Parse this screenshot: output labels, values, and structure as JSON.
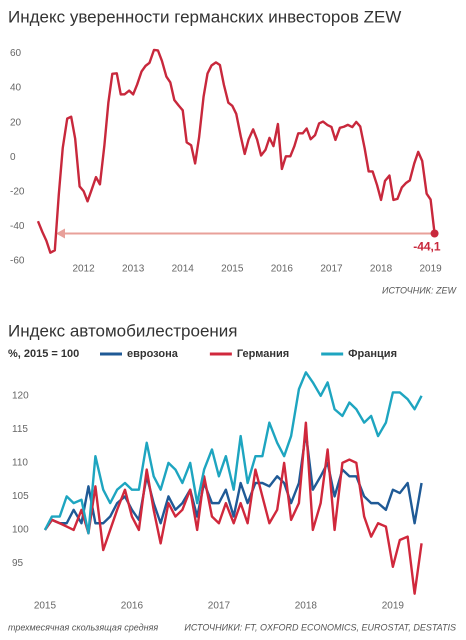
{
  "chart_data": [
    {
      "type": "line",
      "title": "Индекс уверенности германских инвесторов ZEW",
      "source": "ИСТОЧНИК: ZEW",
      "x": [
        2011.58,
        2011.67,
        2011.75,
        2011.83,
        2011.92,
        2012,
        2012.08,
        2012.17,
        2012.25,
        2012.33,
        2012.42,
        2012.5,
        2012.58,
        2012.67,
        2012.75,
        2012.83,
        2012.92,
        2013,
        2013.08,
        2013.17,
        2013.25,
        2013.33,
        2013.42,
        2013.5,
        2013.58,
        2013.67,
        2013.75,
        2013.83,
        2013.92,
        2014,
        2014.08,
        2014.17,
        2014.25,
        2014.33,
        2014.42,
        2014.5,
        2014.58,
        2014.67,
        2014.75,
        2014.83,
        2014.92,
        2015,
        2015.08,
        2015.17,
        2015.25,
        2015.33,
        2015.42,
        2015.5,
        2015.58,
        2015.67,
        2015.75,
        2015.83,
        2015.92,
        2016,
        2016.08,
        2016.17,
        2016.25,
        2016.33,
        2016.42,
        2016.5,
        2016.58,
        2016.67,
        2016.75,
        2016.83,
        2016.92,
        2017,
        2017.08,
        2017.17,
        2017.25,
        2017.33,
        2017.42,
        2017.5,
        2017.58,
        2017.67,
        2017.75,
        2017.83,
        2017.92,
        2018,
        2018.08,
        2018.17,
        2018.25,
        2018.33,
        2018.42,
        2018.5,
        2018.58,
        2018.67,
        2018.75,
        2018.83,
        2018.92,
        2019,
        2019.08,
        2019.17,
        2019.25,
        2019.33,
        2019.42,
        2019.5,
        2019.58
      ],
      "series": [
        {
          "name": "ZEW",
          "color": "#c8283c",
          "values": [
            -37.0,
            -43.3,
            -48.3,
            -55.2,
            -53.8,
            -21.6,
            5.4,
            22.3,
            23.4,
            10.8,
            -16.9,
            -19.6,
            -25.5,
            -18.2,
            -11.5,
            -15.7,
            6.9,
            31.5,
            48.2,
            48.5,
            36.3,
            36.4,
            38.5,
            36.3,
            42.0,
            49.6,
            52.8,
            54.6,
            62.0,
            61.7,
            55.7,
            46.6,
            43.2,
            33.1,
            29.8,
            27.1,
            8.6,
            6.9,
            -3.6,
            11.5,
            34.9,
            48.4,
            53.0,
            54.8,
            53.3,
            41.9,
            31.5,
            29.7,
            25.0,
            12.1,
            1.9,
            10.4,
            16.1,
            10.2,
            1.0,
            4.3,
            11.2,
            6.4,
            19.2,
            -6.8,
            0.5,
            0.5,
            6.2,
            13.8,
            13.8,
            16.6,
            10.4,
            12.8,
            19.5,
            20.6,
            18.6,
            17.5,
            10.0,
            17.0,
            17.6,
            18.7,
            17.4,
            20.4,
            17.8,
            5.1,
            -8.2,
            -8.2,
            -16.1,
            -24.7,
            -13.7,
            -10.6,
            -24.7,
            -24.1,
            -17.5,
            -15.0,
            -13.4,
            -3.6,
            3.1,
            -2.1,
            -21.1,
            -24.5,
            -44.1
          ]
        }
      ],
      "annotations": [
        {
          "text": "-44,1",
          "x": 2019.58,
          "y": -44.1,
          "color": "#e8a09a"
        }
      ],
      "xlim": [
        2011.5,
        2019.75
      ],
      "xticks": [
        {
          "value": 2012.5,
          "label": "2012"
        },
        {
          "value": 2013.5,
          "label": "2013"
        },
        {
          "value": 2014.5,
          "label": "2014"
        },
        {
          "value": 2015.5,
          "label": "2015"
        },
        {
          "value": 2016.5,
          "label": "2016"
        },
        {
          "value": 2017.5,
          "label": "2017"
        },
        {
          "value": 2018.5,
          "label": "2018"
        },
        {
          "value": 2019.5,
          "label": "2019"
        }
      ],
      "ylim": [
        -60,
        64
      ],
      "yticks": [
        60,
        40,
        20,
        0,
        -20,
        -40,
        -60
      ]
    },
    {
      "type": "line",
      "title": "Индекс автомобилестроения",
      "y_label": "%, 2015 = 100",
      "footnote": "трехмесячная скользящая средняя",
      "source": "ИСТОЧНИКИ: FT, OXFORD ECONOMICS, EUROSTAT, DESTATIS",
      "x": [
        2015,
        2015.08,
        2015.17,
        2015.25,
        2015.33,
        2015.42,
        2015.5,
        2015.58,
        2015.67,
        2015.75,
        2015.83,
        2015.92,
        2016,
        2016.08,
        2016.17,
        2016.25,
        2016.33,
        2016.42,
        2016.5,
        2016.58,
        2016.67,
        2016.75,
        2016.83,
        2016.92,
        2017,
        2017.08,
        2017.17,
        2017.25,
        2017.33,
        2017.42,
        2017.5,
        2017.58,
        2017.67,
        2017.75,
        2017.83,
        2017.92,
        2018,
        2018.08,
        2018.17,
        2018.25,
        2018.33,
        2018.42,
        2018.5,
        2018.58,
        2018.67,
        2018.75,
        2018.83,
        2018.92,
        2019,
        2019.08,
        2019.17,
        2019.25,
        2019.33
      ],
      "series": [
        {
          "name": "еврозона",
          "color": "#1f5a96",
          "values": [
            100,
            101.5,
            101,
            101,
            103,
            101,
            106.5,
            101,
            101,
            102,
            104,
            105,
            103,
            101.5,
            108,
            104,
            101,
            105,
            103,
            104,
            106,
            102,
            107,
            104,
            104,
            106,
            102,
            107,
            104,
            107,
            107,
            106.5,
            108,
            107,
            104,
            107,
            114.5,
            106,
            108,
            110,
            105,
            109,
            108,
            108,
            105,
            104,
            104,
            103,
            106,
            105.5,
            107,
            101,
            107
          ]
        },
        {
          "name": "Германия",
          "color": "#d0283c",
          "values": [
            100,
            101.5,
            101,
            100.5,
            100,
            103,
            99.5,
            106.5,
            97,
            100,
            103,
            106,
            102,
            100,
            109,
            103,
            98,
            104,
            102,
            103,
            106,
            100,
            108,
            102,
            101,
            104,
            101,
            104,
            101,
            109,
            105,
            101,
            103,
            110,
            101.5,
            104,
            116,
            100,
            104,
            112,
            100,
            110,
            110.5,
            110,
            102,
            99,
            101,
            100.5,
            94.5,
            98.5,
            99,
            90.5,
            98
          ]
        },
        {
          "name": "Франция",
          "color": "#1ea5c0",
          "values": [
            100,
            102,
            102,
            105,
            104,
            104.5,
            99.5,
            111,
            106,
            104,
            106,
            107,
            106,
            106,
            113,
            108,
            106,
            110,
            109,
            107,
            110,
            104,
            109,
            112,
            108,
            111,
            106,
            114,
            107,
            111,
            111,
            116,
            113,
            111,
            114,
            121,
            123.5,
            122,
            120,
            122,
            118,
            117,
            119,
            118,
            116,
            117,
            114,
            116,
            120.5,
            120.5,
            119.5,
            118,
            120
          ]
        }
      ],
      "xlim": [
        2014.95,
        2019.45
      ],
      "xticks": [
        2015,
        2016,
        2017,
        2018,
        2019
      ],
      "ylim": [
        90,
        124
      ],
      "yticks": [
        120,
        115,
        110,
        105,
        100,
        95
      ]
    }
  ]
}
